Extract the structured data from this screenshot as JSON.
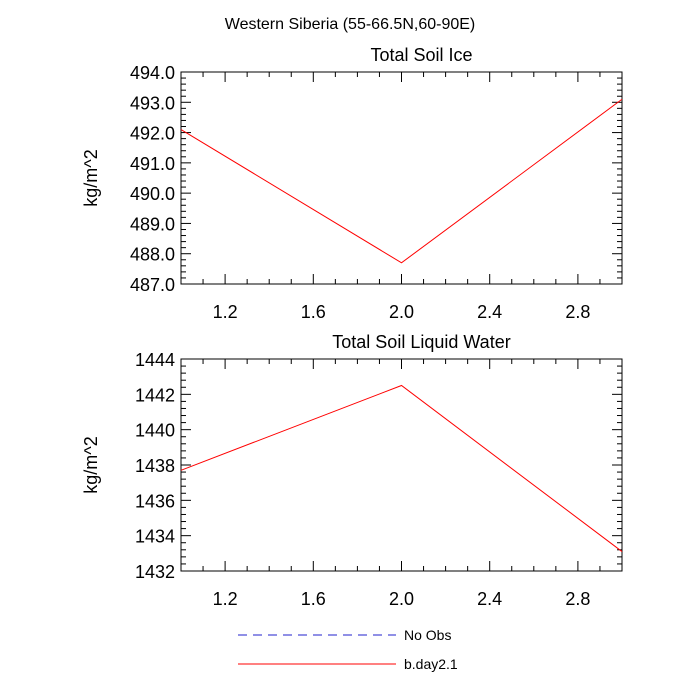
{
  "figure": {
    "suptitle": "Western Siberia (55-66.5N,60-90E)"
  },
  "chart_data": [
    {
      "type": "line",
      "title": "Total Soil Ice",
      "xlabel": "",
      "ylabel": "kg/m^2",
      "xlim": [
        1.0,
        3.0
      ],
      "ylim": [
        487.0,
        494.0
      ],
      "xticks": [
        1.2,
        1.6,
        2.0,
        2.4,
        2.8
      ],
      "xtick_labels": [
        "1.2",
        "1.6",
        "2.0",
        "2.4",
        "2.8"
      ],
      "yticks": [
        487,
        488,
        489,
        490,
        491,
        492,
        493,
        494
      ],
      "ytick_labels": [
        "487.0",
        "488.0",
        "489.0",
        "490.0",
        "491.0",
        "492.0",
        "493.0",
        "494.0"
      ],
      "series": [
        {
          "name": "b.day2.1",
          "color": "#ff0000",
          "x": [
            1.0,
            2.0,
            3.0
          ],
          "y": [
            492.1,
            487.7,
            493.1
          ]
        }
      ]
    },
    {
      "type": "line",
      "title": "Total Soil Liquid Water",
      "xlabel": "",
      "ylabel": "kg/m^2",
      "xlim": [
        1.0,
        3.0
      ],
      "ylim": [
        1432,
        1444
      ],
      "xticks": [
        1.2,
        1.6,
        2.0,
        2.4,
        2.8
      ],
      "xtick_labels": [
        "1.2",
        "1.6",
        "2.0",
        "2.4",
        "2.8"
      ],
      "yticks": [
        1432,
        1434,
        1436,
        1438,
        1440,
        1442,
        1444
      ],
      "ytick_labels": [
        "1432",
        "1434",
        "1436",
        "1438",
        "1440",
        "1442",
        "1444"
      ],
      "series": [
        {
          "name": "b.day2.1",
          "color": "#ff0000",
          "x": [
            1.0,
            2.0,
            3.0
          ],
          "y": [
            1437.7,
            1442.5,
            1433.1
          ]
        }
      ]
    }
  ],
  "legend": {
    "placement": "bottom",
    "items": [
      {
        "label": "No Obs",
        "color": "#2222cc",
        "style": "dashed"
      },
      {
        "label": "b.day2.1",
        "color": "#ff0000",
        "style": "solid"
      }
    ]
  }
}
